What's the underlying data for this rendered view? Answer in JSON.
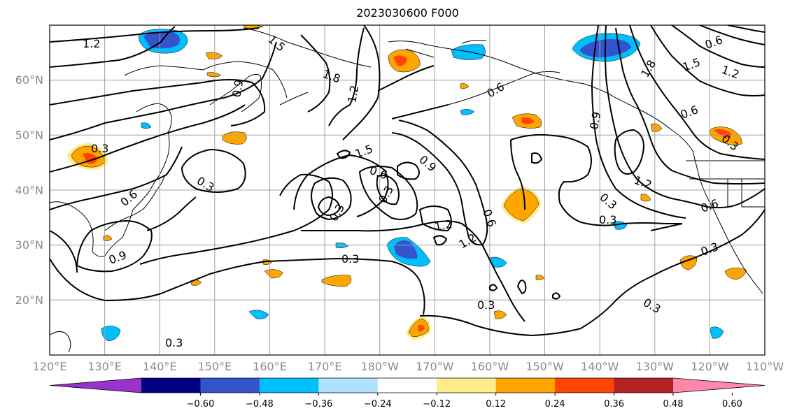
{
  "title": "2023030600 F000",
  "lon_labels": [
    "120°E",
    "130°E",
    "140°E",
    "150°E",
    "160°E",
    "170°E",
    "180°W",
    "170°W",
    "160°W",
    "150°W",
    "140°W",
    "130°W",
    "120°W",
    "110°W"
  ],
  "lat_labels": [
    "20°N",
    "30°N",
    "40°N",
    "50°N",
    "60°N"
  ],
  "colorbar": {
    "ticks": [
      "−0.60",
      "−0.48",
      "−0.36",
      "−0.24",
      "−0.12",
      "0.12",
      "0.24",
      "0.36",
      "0.48",
      "0.60"
    ],
    "colors": [
      "#9933cc",
      "#000080",
      "#3355cc",
      "#00bfff",
      "#b0e2ff",
      "#ffffff",
      "#ffec8b",
      "#ffa500",
      "#ff4500",
      "#b22222",
      "#ff88aa"
    ]
  },
  "contour_labels": [
    "1.2",
    "1.5",
    "1.8",
    "0.9",
    "1.2",
    "1.5",
    "1.8",
    "1.2",
    "0.6",
    "0.3",
    "0.6",
    "0.9",
    "1.5",
    "0.6",
    "0.3",
    "1.2",
    "0.9",
    "0.6",
    "0.3",
    "0.3",
    "0.6",
    "0.3",
    "0.3",
    "0.3",
    "0.3",
    "1.2",
    "0.6",
    "0.3",
    "0.3",
    "0.3",
    "0.9",
    "0.3",
    "1.2",
    "0.6"
  ]
}
